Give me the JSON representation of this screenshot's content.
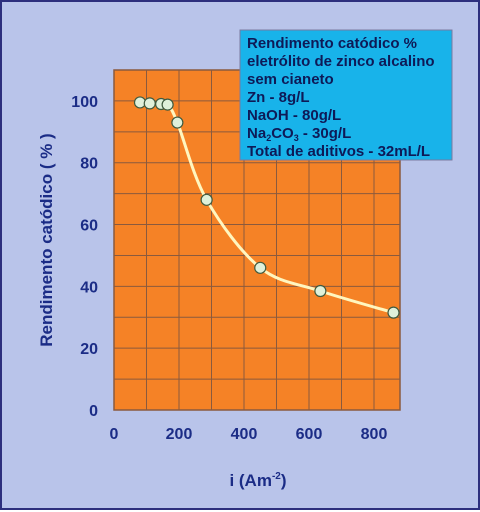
{
  "chart_data": {
    "type": "line",
    "xlabel": "i (Am",
    "xlabel_sup": "-2",
    "xlabel_close": ")",
    "ylabel": "Rendimento catódico ( % )",
    "xlim": [
      0,
      880
    ],
    "ylim": [
      0,
      110
    ],
    "x_ticks": [
      0,
      200,
      400,
      600,
      800
    ],
    "y_ticks": [
      0,
      20,
      40,
      60,
      80,
      100
    ],
    "grid": true,
    "series": [
      {
        "points": [
          {
            "x": 80,
            "y": 99.5
          },
          {
            "x": 110,
            "y": 99.2
          },
          {
            "x": 145,
            "y": 99
          },
          {
            "x": 165,
            "y": 98.8
          },
          {
            "x": 195,
            "y": 93
          },
          {
            "x": 285,
            "y": 68
          },
          {
            "x": 450,
            "y": 46
          },
          {
            "x": 635,
            "y": 38.5
          },
          {
            "x": 860,
            "y": 31.5
          }
        ]
      }
    ],
    "legend_box": {
      "line1": "Rendimento catódico %",
      "line2": "eletrólito de zinco alcalino",
      "line3": "sem cianeto",
      "line4": "Zn - 8g/L",
      "line5": "NaOH -  80g/L",
      "line6_pre": "Na",
      "line6_sub1": "2",
      "line6_mid": "CO",
      "line6_sub2": "3",
      "line6_post": " - 30g/L",
      "line7": "Total de aditivos - 32mL/L"
    }
  },
  "colors": {
    "background": "#b9c4ea",
    "plot_bg": "#f58226",
    "grid": "#8a5a3e",
    "line": "#fff6bf",
    "marker_fill": "#dff0da",
    "marker_stroke": "#3f5a3f",
    "legend_bg": "#18b3ea",
    "text": "#1b2c86"
  }
}
